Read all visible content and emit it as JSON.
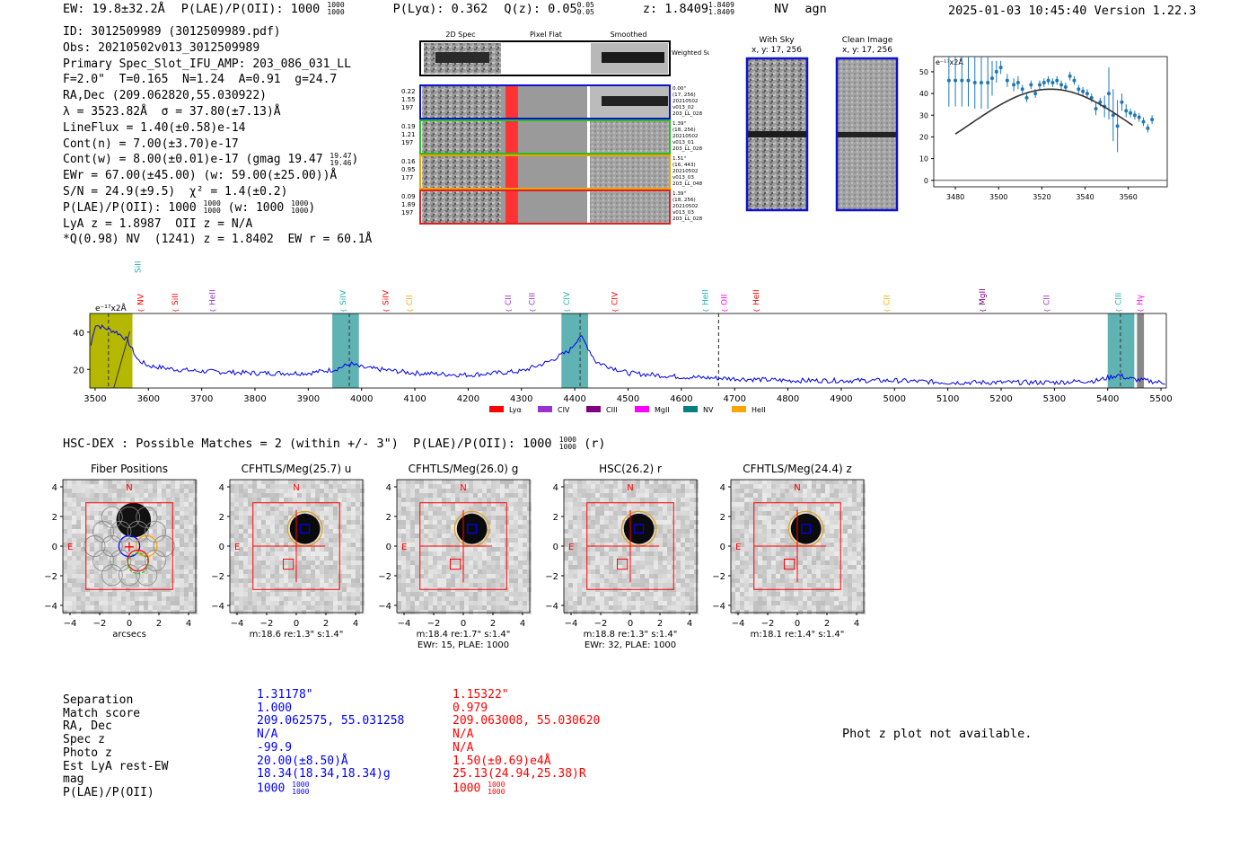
{
  "header": {
    "ew": "EW: 19.8±32.2Å",
    "plae": "P(LAE)/P(OII): 1000",
    "plya": "P(Lyα): 0.362",
    "qz": "Q(z): 0.05",
    "z": "z: 1.8409",
    "line": "NV",
    "cls": "agn",
    "timestamp": "2025-01-03 10:45:40",
    "version": "Version 1.22.3"
  },
  "info": {
    "id": "ID: 3012509989 (3012509989.pdf)",
    "obs": "Obs: 20210502v013_3012509989",
    "primary": "Primary Spec_Slot_IFU_AMP: 203_086_031_LL",
    "fparams": "F=2.0\"  T=0.165  N=1.24  A=0.91  g=24.7",
    "radec": "RA,Dec (209.062820,55.030922)",
    "lambda": "λ = 3523.82Å  σ = 37.80(±7.13)Å",
    "lineflux": "LineFlux = 1.40(±0.58)e-14",
    "contn": "Cont(n) = 7.00(±3.70)e-17",
    "contw": "Cont(w) = 8.00(±0.01)e-17 (gmag 19.47",
    "ewr": "EWr = 67.00(±45.00) (w: 59.00(±25.00))Å",
    "sn": "S/N = 24.9(±9.5)  χ² = 1.4(±0.2)",
    "plae": "P(LAE)/P(OII): 1000",
    "plae_w": "(w: 1000",
    "lyaz": "LyA z = 1.8987  OII z = N/A",
    "q": "*Q(0.98) NV  (1241) z = 1.8402  EW r = 60.1Å"
  },
  "cutouts": {
    "col_labels": [
      "2D Spec",
      "Pixel Flat",
      "Smoothed"
    ],
    "weighted": "Weighted Sum",
    "rows": [
      {
        "stats": [
          "0.22",
          "1.55",
          "197"
        ],
        "meta": [
          "0.00\"",
          "(17, 256)",
          "20210502",
          "v013_02",
          "203_LL_028"
        ]
      },
      {
        "stats": [
          "0.19",
          "1.21",
          "197"
        ],
        "meta": [
          "1.39\"",
          "(18, 256)",
          "20210502",
          "v013_01",
          "203_LL_028"
        ]
      },
      {
        "stats": [
          "0.16",
          "0.95",
          "177"
        ],
        "meta": [
          "1.51\"",
          "(16, 443)",
          "20210502",
          "v013_03",
          "203_LL_048"
        ]
      },
      {
        "stats": [
          "0.09",
          "1.89",
          "197"
        ],
        "meta": [
          "1.39\"",
          "(18, 256)",
          "20210502",
          "v013_03",
          "203_LL_028"
        ]
      }
    ],
    "with_sky": "With Sky",
    "with_sky_xy": "x, y: 17, 256",
    "clean": "Clean Image",
    "clean_xy": "x, y: 17, 256"
  },
  "zoom_chart": {
    "chart_data": {
      "type": "scatter",
      "title": "",
      "scale_label": "e⁻¹⁷x2Å",
      "xlabel": "",
      "ylabel": "",
      "xlim": [
        3470,
        3578
      ],
      "ylim": [
        -3,
        57
      ],
      "xticks": [
        3480,
        3500,
        3520,
        3540,
        3560
      ],
      "yticks": [
        0,
        10,
        20,
        30,
        40,
        50
      ],
      "points": [
        [
          3477,
          46,
          12
        ],
        [
          3480,
          46,
          12
        ],
        [
          3483,
          46,
          12
        ],
        [
          3486,
          46,
          12
        ],
        [
          3489,
          45,
          12
        ],
        [
          3492,
          45,
          12
        ],
        [
          3495,
          45,
          12
        ],
        [
          3497,
          47,
          8
        ],
        [
          3499,
          50,
          5
        ],
        [
          3501,
          52,
          3
        ],
        [
          3504,
          46,
          3
        ],
        [
          3507,
          44,
          3
        ],
        [
          3509,
          45,
          3
        ],
        [
          3511,
          42,
          2
        ],
        [
          3513,
          38,
          2
        ],
        [
          3515,
          44,
          2
        ],
        [
          3517,
          40,
          2
        ],
        [
          3519,
          44,
          2
        ],
        [
          3521,
          45,
          2
        ],
        [
          3523,
          46,
          2
        ],
        [
          3525,
          45,
          2
        ],
        [
          3527,
          46,
          2
        ],
        [
          3529,
          44,
          2
        ],
        [
          3531,
          43,
          2
        ],
        [
          3533,
          48,
          2
        ],
        [
          3535,
          46,
          2
        ],
        [
          3537,
          42,
          2
        ],
        [
          3539,
          41,
          2
        ],
        [
          3541,
          40,
          2
        ],
        [
          3543,
          38,
          2
        ],
        [
          3545,
          33,
          3
        ],
        [
          3547,
          36,
          2
        ],
        [
          3549,
          34,
          5
        ],
        [
          3551,
          40,
          12
        ],
        [
          3553,
          30,
          12
        ],
        [
          3555,
          25,
          12
        ],
        [
          3557,
          36,
          4
        ],
        [
          3559,
          32,
          3
        ],
        [
          3561,
          31,
          2
        ],
        [
          3563,
          30,
          2
        ],
        [
          3565,
          29,
          2
        ],
        [
          3567,
          27,
          2
        ],
        [
          3569,
          24,
          2
        ],
        [
          3571,
          28,
          2
        ]
      ],
      "fit": {
        "center": 3524,
        "sigma": 37.8,
        "amp": 42,
        "base": 0
      }
    }
  },
  "main_spectrum": {
    "chart_data": {
      "type": "line",
      "scale_label": "e⁻¹⁷x2Å",
      "xlim": [
        3490,
        5510
      ],
      "ylim": [
        10,
        50
      ],
      "xticks": [
        3500,
        3600,
        3700,
        3800,
        3900,
        4000,
        4100,
        4200,
        4300,
        4400,
        4500,
        4600,
        4700,
        4800,
        4900,
        5000,
        5100,
        5200,
        5300,
        5400,
        5500
      ],
      "yticks": [
        20,
        40
      ],
      "line_markers": [
        {
          "name": "SiII",
          "x": 3580,
          "color": "#20b2aa",
          "high": true
        },
        {
          "name": "NV",
          "x": 3585,
          "color": "#ff0000"
        },
        {
          "name": "SiII",
          "x": 3650,
          "color": "#ff0000"
        },
        {
          "name": "HeII",
          "x": 3720,
          "color": "#9932cc"
        },
        {
          "name": "SiIV",
          "x": 3965,
          "color": "#20b2aa"
        },
        {
          "name": "SiIV",
          "x": 4045,
          "color": "#ff0000"
        },
        {
          "name": "CII",
          "x": 4090,
          "color": "#ffa500"
        },
        {
          "name": "CII",
          "x": 4275,
          "color": "#9932cc"
        },
        {
          "name": "CIII",
          "x": 4320,
          "color": "#9932cc"
        },
        {
          "name": "CIV",
          "x": 4385,
          "color": "#20b2aa"
        },
        {
          "name": "CIV",
          "x": 4475,
          "color": "#ff0000"
        },
        {
          "name": "HeII",
          "x": 4645,
          "color": "#20b2aa"
        },
        {
          "name": "OII",
          "x": 4680,
          "color": "#ff00ff"
        },
        {
          "name": "HeII",
          "x": 4740,
          "color": "#ff0000"
        },
        {
          "name": "CII",
          "x": 4985,
          "color": "#ffa500"
        },
        {
          "name": "MgII",
          "x": 5165,
          "color": "#800080"
        },
        {
          "name": "CII",
          "x": 5285,
          "color": "#9932cc"
        },
        {
          "name": "CIII",
          "x": 5420,
          "color": "#20b2aa"
        },
        {
          "name": "Hγ",
          "x": 5460,
          "color": "#ff00ff"
        }
      ],
      "bands": [
        {
          "from": 3490,
          "to": 3570,
          "color": "#b5b800"
        },
        {
          "from": 3945,
          "to": 3995,
          "color": "#5fb3b3"
        },
        {
          "from": 4375,
          "to": 4425,
          "color": "#5fb3b3"
        },
        {
          "from": 5400,
          "to": 5450,
          "color": "#5fb3b3"
        },
        {
          "from": 5455,
          "to": 5468,
          "color": "#888888"
        }
      ],
      "dashed_lines": [
        3525,
        3977,
        4410,
        4670,
        5424
      ],
      "legend": [
        {
          "label": "Lyα",
          "color": "#ff0000"
        },
        {
          "label": "CIV",
          "color": "#9932cc"
        },
        {
          "label": "CIII",
          "color": "#800080"
        },
        {
          "label": "MgII",
          "color": "#ff00ff"
        },
        {
          "label": "NV",
          "color": "#008080"
        },
        {
          "label": "HeII",
          "color": "#ffa500"
        }
      ],
      "anchors": [
        [
          3490,
          30
        ],
        [
          3500,
          44
        ],
        [
          3520,
          42
        ],
        [
          3540,
          40
        ],
        [
          3560,
          36
        ],
        [
          3580,
          25
        ],
        [
          3600,
          22
        ],
        [
          3650,
          20
        ],
        [
          3700,
          19
        ],
        [
          3800,
          18
        ],
        [
          3900,
          18
        ],
        [
          3950,
          20
        ],
        [
          3980,
          23
        ],
        [
          4000,
          21
        ],
        [
          4100,
          18
        ],
        [
          4200,
          17
        ],
        [
          4300,
          19
        ],
        [
          4350,
          24
        ],
        [
          4390,
          30
        ],
        [
          4410,
          38
        ],
        [
          4420,
          34
        ],
        [
          4440,
          24
        ],
        [
          4480,
          20
        ],
        [
          4500,
          18
        ],
        [
          4600,
          16
        ],
        [
          4700,
          15
        ],
        [
          4800,
          14
        ],
        [
          4900,
          14
        ],
        [
          5000,
          14
        ],
        [
          5100,
          13
        ],
        [
          5200,
          13
        ],
        [
          5300,
          13
        ],
        [
          5380,
          14
        ],
        [
          5420,
          17
        ],
        [
          5440,
          15
        ],
        [
          5500,
          13
        ]
      ]
    }
  },
  "hsc_line": "HSC-DEX : Possible Matches = 2 (within +/- 3\")  P(LAE)/P(OII): 1000",
  "hsc_band": "(r)",
  "stamps": [
    {
      "title": "Fiber Positions",
      "caption1": "arcsecs",
      "caption2": ""
    },
    {
      "title": "CFHTLS/Meg(25.7) u",
      "caption1": "m:18.6  re:1.3\"  s:1.4\"",
      "caption2": ""
    },
    {
      "title": "CFHTLS/Meg(26.0) g",
      "caption1": "m:18.4  re:1.7\"  s:1.4\"",
      "caption2": "EWr: 15, PLAE: 1000"
    },
    {
      "title": "HSC(26.2) r",
      "caption1": "m:18.8  re:1.3\"  s:1.4\"",
      "caption2": "EWr: 32, PLAE: 1000"
    },
    {
      "title": "CFHTLS/Meg(24.4) z",
      "caption1": "m:18.1  re:1.4\"  s:1.4\"",
      "caption2": ""
    }
  ],
  "stamp_axes": {
    "ticks": [
      "4",
      "2",
      "0",
      "−2",
      "−4"
    ],
    "xticks": [
      "−4",
      "−2",
      "0",
      "2",
      "4"
    ],
    "n": "N",
    "e": "E"
  },
  "table": {
    "labels": [
      "Separation",
      "Match score",
      "RA, Dec",
      "Spec z",
      "Photo z",
      "Est LyA rest-EW",
      "mag",
      "P(LAE)/P(OII)"
    ],
    "blue": [
      "1.31178\"",
      "1.000",
      "209.062575, 55.031258",
      "N/A",
      "-99.9",
      "20.00(±8.50)Å",
      "18.34(18.34,18.34)g",
      "1000"
    ],
    "red": [
      "1.15322\"",
      "0.979",
      "209.063008, 55.030620",
      "N/A",
      "N/A",
      "1.50(±0.69)e4Å",
      "25.13(24.94,25.38)R",
      "1000"
    ],
    "plae_frac": [
      "1000",
      "1000"
    ]
  },
  "phot_z": "Phot z plot not available.",
  "fractions": {
    "plae": [
      "1000",
      "1000"
    ],
    "qz": [
      "0.05",
      "0.05"
    ],
    "z": [
      "1.8409",
      "1.8409"
    ],
    "gmag": [
      "19.47",
      "19.46"
    ]
  }
}
